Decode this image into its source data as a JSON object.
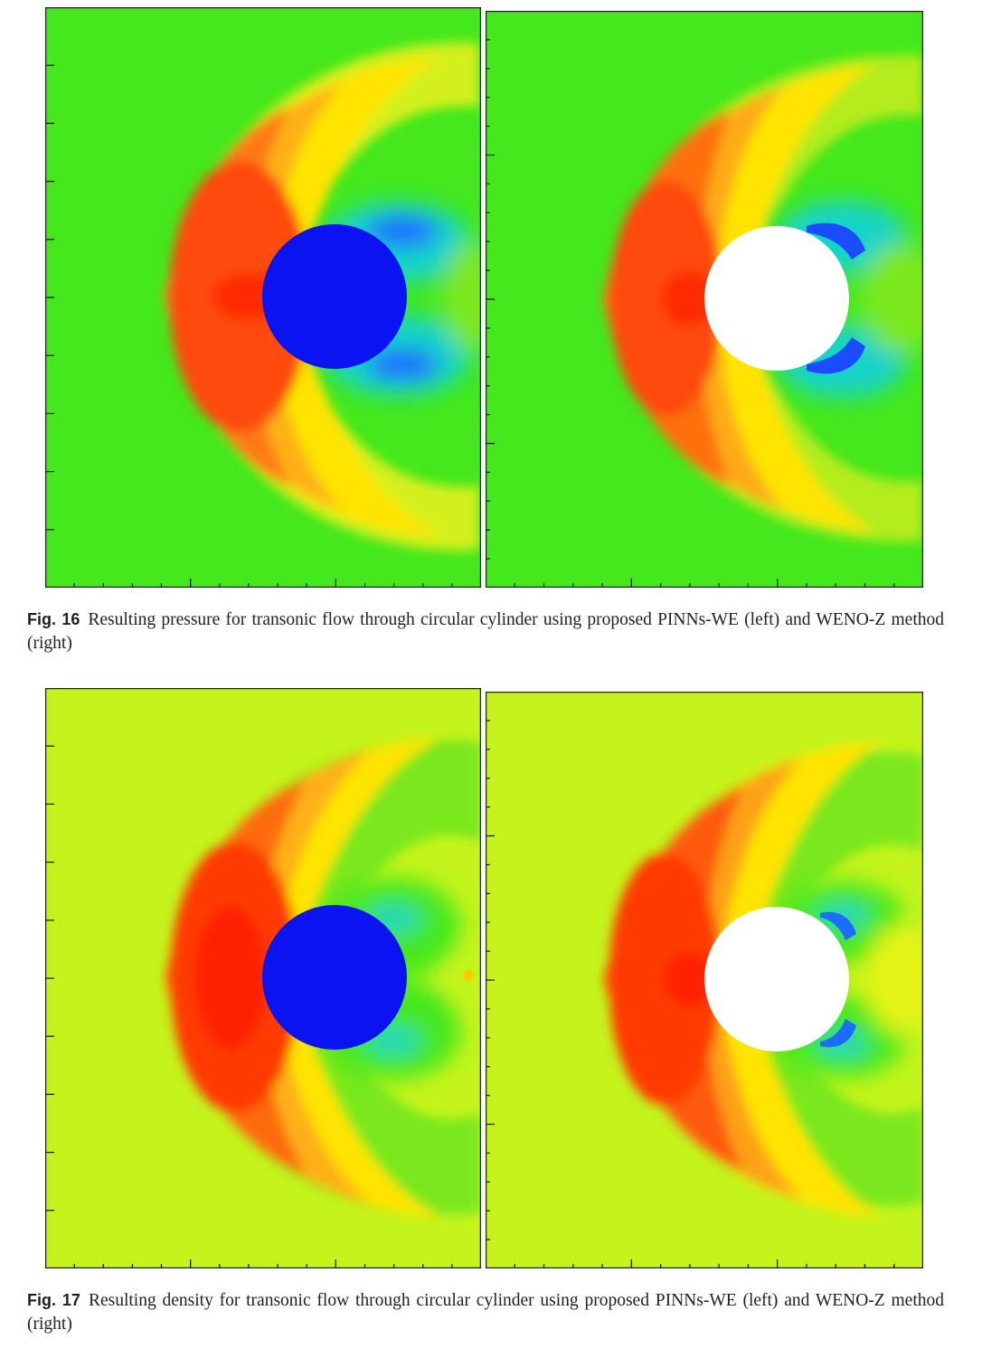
{
  "figures": [
    {
      "label": "Fig. 16",
      "caption": "Resulting pressure for transonic flow through circular cylinder using proposed PINNs-WE (left) and WENO-Z method (right)",
      "panels": [
        {
          "method": "PINNs-WE",
          "side": "left"
        },
        {
          "method": "WENO-Z",
          "side": "right"
        }
      ]
    },
    {
      "label": "Fig. 17",
      "caption": "Resulting density for transonic flow through circular cylinder using proposed PINNs-WE (left) and WENO-Z method (right)",
      "panels": [
        {
          "method": "PINNs-WE",
          "side": "left"
        },
        {
          "method": "WENO-Z",
          "side": "right"
        }
      ]
    }
  ],
  "colors": {
    "pressure_freestream": "#44e81c",
    "density_freestream": "#c4f41c",
    "shock_red": "#ff2a00",
    "shock_orange": "#ff7a14",
    "yellow": "#ffe400",
    "wake_blue": "#1c4cff",
    "cylinder_blue": "#0a14f0",
    "cylinder_white": "#ffffff",
    "frame": "#231f20"
  }
}
